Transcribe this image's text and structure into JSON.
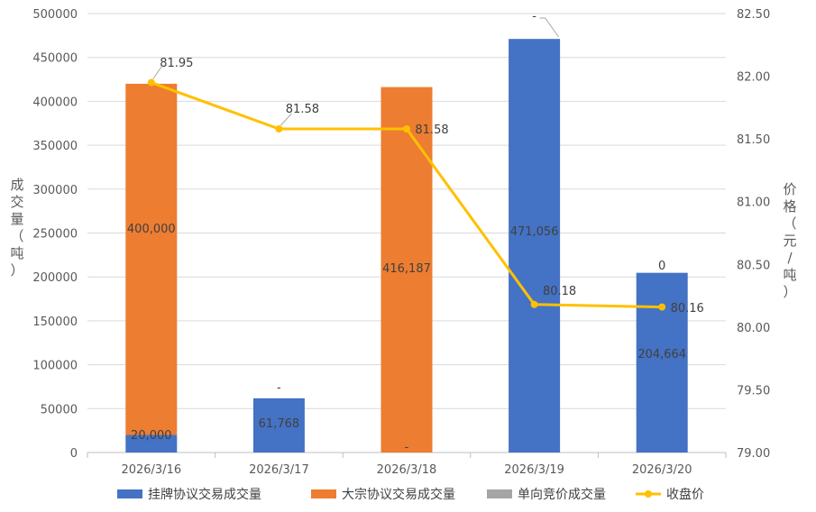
{
  "chart_data": {
    "type": "bar",
    "stacked": true,
    "categories": [
      "2026/3/16",
      "2026/3/17",
      "2026/3/18",
      "2026/3/19",
      "2026/3/20"
    ],
    "series": [
      {
        "name": "挂牌协议交易成交量",
        "type": "bar",
        "axis": "left",
        "color": "#4472C4",
        "values": [
          20000,
          61768,
          0,
          471056,
          204664
        ],
        "labels": [
          "20,000",
          "61,768",
          "-",
          "471,056",
          "204,664"
        ]
      },
      {
        "name": "大宗协议交易成交量",
        "type": "bar",
        "axis": "left",
        "color": "#ED7D31",
        "values": [
          400000,
          0,
          416187,
          0,
          0
        ],
        "labels": [
          "400,000",
          "-",
          "416,187",
          "-",
          "0"
        ]
      },
      {
        "name": "单向竞价成交量",
        "type": "bar",
        "axis": "left",
        "color": "#A5A5A5",
        "values": [
          0,
          0,
          0,
          0,
          0
        ],
        "labels": []
      },
      {
        "name": "收盘价",
        "type": "line",
        "axis": "right",
        "color": "#FFC000",
        "values": [
          81.95,
          81.58,
          81.58,
          80.18,
          80.16
        ],
        "labels": [
          "81.95",
          "81.58",
          "81.58",
          "80.18",
          "80.16"
        ]
      }
    ],
    "y_left": {
      "label": "成交量（吨）",
      "ylim": [
        0,
        500000
      ],
      "ticks": [
        "0",
        "50000",
        "100000",
        "150000",
        "200000",
        "250000",
        "300000",
        "350000",
        "400000",
        "450000",
        "500000"
      ]
    },
    "y_right": {
      "label": "价格（元/吨）",
      "ylim": [
        79.0,
        82.5
      ],
      "ticks": [
        "79.00",
        "79.50",
        "80.00",
        "80.50",
        "81.00",
        "81.50",
        "82.00",
        "82.50"
      ]
    },
    "grid": true,
    "legend_position": "bottom"
  }
}
